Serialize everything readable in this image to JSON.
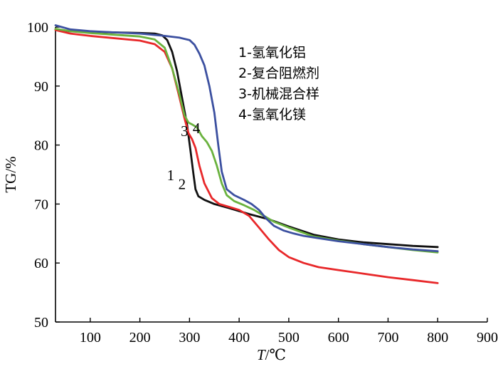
{
  "chart_data": {
    "type": "line",
    "xlabel": "T/℃",
    "xlabel_italic": "T",
    "xlabel_unit": "/℃",
    "ylabel": "TG/%",
    "xlim": [
      30,
      900
    ],
    "ylim": [
      50,
      100
    ],
    "xticks": [
      100,
      200,
      300,
      400,
      500,
      600,
      700,
      800,
      900
    ],
    "yticks": [
      50,
      60,
      70,
      80,
      90,
      100
    ],
    "grid": false,
    "legend_position": "top-right",
    "legend": [
      "1-氢氧化铝",
      "2-复合阻燃剂",
      "3-机械混合样",
      "4-氢氧化镁"
    ],
    "series": [
      {
        "name": "1-氢氧化铝",
        "curve_label": "1",
        "color": "#111111",
        "x": [
          30,
          60,
          100,
          150,
          200,
          230,
          245,
          255,
          265,
          275,
          285,
          295,
          302,
          308,
          312,
          318,
          330,
          350,
          380,
          420,
          460,
          500,
          550,
          600,
          650,
          700,
          750,
          800
        ],
        "y": [
          99.6,
          99.3,
          99.2,
          99.1,
          99.0,
          98.9,
          98.6,
          97.8,
          95.8,
          92.5,
          88.0,
          83.5,
          79.0,
          75.0,
          72.5,
          71.3,
          70.7,
          70.0,
          69.3,
          68.3,
          67.4,
          66.2,
          64.8,
          64.0,
          63.5,
          63.2,
          62.9,
          62.7
        ]
      },
      {
        "name": "2-复合阻燃剂",
        "curve_label": "2",
        "color": "#e8282a",
        "x": [
          30,
          60,
          100,
          150,
          200,
          230,
          250,
          265,
          280,
          290,
          298,
          305,
          312,
          320,
          330,
          345,
          360,
          380,
          400,
          420,
          440,
          460,
          480,
          500,
          530,
          560,
          600,
          650,
          700,
          750,
          800
        ],
        "y": [
          99.5,
          98.9,
          98.5,
          98.1,
          97.7,
          97.1,
          95.8,
          93.0,
          88.0,
          84.5,
          82.0,
          81.0,
          79.5,
          76.5,
          73.5,
          71.0,
          70.0,
          69.5,
          69.0,
          68.0,
          66.0,
          64.0,
          62.2,
          61.0,
          60.0,
          59.3,
          58.8,
          58.2,
          57.6,
          57.1,
          56.6
        ]
      },
      {
        "name": "3-机械混合样",
        "curve_label": "3",
        "color": "#6ab23e",
        "x": [
          30,
          60,
          100,
          150,
          200,
          230,
          250,
          265,
          280,
          290,
          298,
          305,
          315,
          325,
          335,
          345,
          355,
          365,
          375,
          390,
          410,
          430,
          450,
          470,
          500,
          550,
          600,
          650,
          700,
          750,
          800
        ],
        "y": [
          99.7,
          99.3,
          99.0,
          98.7,
          98.4,
          97.9,
          96.5,
          93.0,
          88.5,
          85.0,
          83.8,
          83.5,
          83.0,
          81.5,
          80.5,
          79.0,
          76.5,
          73.5,
          71.5,
          70.5,
          69.8,
          69.0,
          68.0,
          67.0,
          66.0,
          64.5,
          63.8,
          63.2,
          62.7,
          62.2,
          61.8
        ]
      },
      {
        "name": "4-氢氧化镁",
        "curve_label": "4",
        "color": "#3c50a0",
        "x": [
          30,
          60,
          100,
          150,
          200,
          250,
          280,
          300,
          310,
          320,
          330,
          340,
          350,
          358,
          365,
          375,
          390,
          410,
          425,
          440,
          455,
          470,
          490,
          510,
          530,
          560,
          600,
          650,
          700,
          750,
          800
        ],
        "y": [
          100.3,
          99.6,
          99.3,
          99.1,
          98.9,
          98.5,
          98.2,
          97.8,
          97.0,
          95.5,
          93.5,
          90.0,
          85.5,
          80.0,
          75.5,
          72.5,
          71.5,
          70.7,
          70.0,
          69.0,
          67.5,
          66.3,
          65.5,
          65.0,
          64.6,
          64.2,
          63.7,
          63.2,
          62.7,
          62.3,
          62.0
        ]
      }
    ]
  }
}
